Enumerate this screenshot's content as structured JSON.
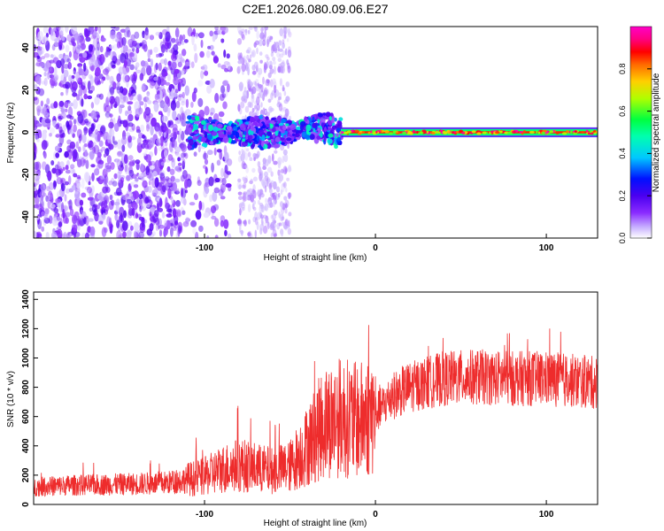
{
  "title": "C2E1.2026.080.09.06.E27",
  "colors": {
    "snr_line": "#ee2c2c",
    "axis": "#000000",
    "colormap": [
      "#ffffff",
      "#d9c7ff",
      "#a070ff",
      "#7a14ff",
      "#4000e8",
      "#0010ff",
      "#00c8ff",
      "#00ff5a",
      "#9bff00",
      "#ffd000",
      "#ff6a00",
      "#ff0000",
      "#ff0080",
      "#ff00c8"
    ]
  },
  "chart_data": [
    {
      "type": "heatmap",
      "xlabel": "Height of straight line (km)",
      "ylabel": "Frequency (Hz)",
      "xlim": [
        -200,
        130
      ],
      "ylim": [
        -50,
        50
      ],
      "xticks": [
        -100,
        0,
        100
      ],
      "yticks": [
        -40,
        -20,
        0,
        20,
        40
      ],
      "colorbar": {
        "label": "Normalized spectral amplitude",
        "range": [
          0.0,
          1.0
        ],
        "ticks": [
          0.0,
          0.2,
          0.4,
          0.6,
          0.8
        ]
      },
      "regions": [
        {
          "x": [
            -200,
            -110
          ],
          "freq_spread": [
            -50,
            50
          ],
          "amplitude": [
            0.02,
            0.2
          ]
        },
        {
          "x": [
            -110,
            -20
          ],
          "freq_center": 0,
          "freq_halfwidth": 6,
          "amplitude": [
            0.1,
            0.5
          ]
        },
        {
          "x": [
            -20,
            130
          ],
          "freq_center": 0,
          "freq_halfwidth": 1.5,
          "amplitude": [
            0.6,
            1.0
          ]
        }
      ]
    },
    {
      "type": "line",
      "xlabel": "Height of straight line (km)",
      "ylabel": "SNR (10 * v/v)",
      "xlim": [
        -200,
        130
      ],
      "ylim": [
        0,
        1450
      ],
      "xticks": [
        -100,
        0,
        100
      ],
      "yticks": [
        0,
        200,
        400,
        600,
        800,
        1000,
        1200,
        1400
      ],
      "series": [
        {
          "x": [
            -200,
            -180,
            -160,
            -140,
            -120,
            -100,
            -90,
            -80,
            -70,
            -60,
            -50,
            -40,
            -30,
            -20,
            -10,
            0,
            10,
            20,
            40,
            60,
            80,
            100,
            120,
            130
          ],
          "values": [
            120,
            130,
            135,
            140,
            150,
            190,
            240,
            270,
            250,
            230,
            260,
            400,
            560,
            600,
            570,
            620,
            740,
            800,
            860,
            870,
            860,
            860,
            840,
            830
          ]
        }
      ]
    }
  ]
}
